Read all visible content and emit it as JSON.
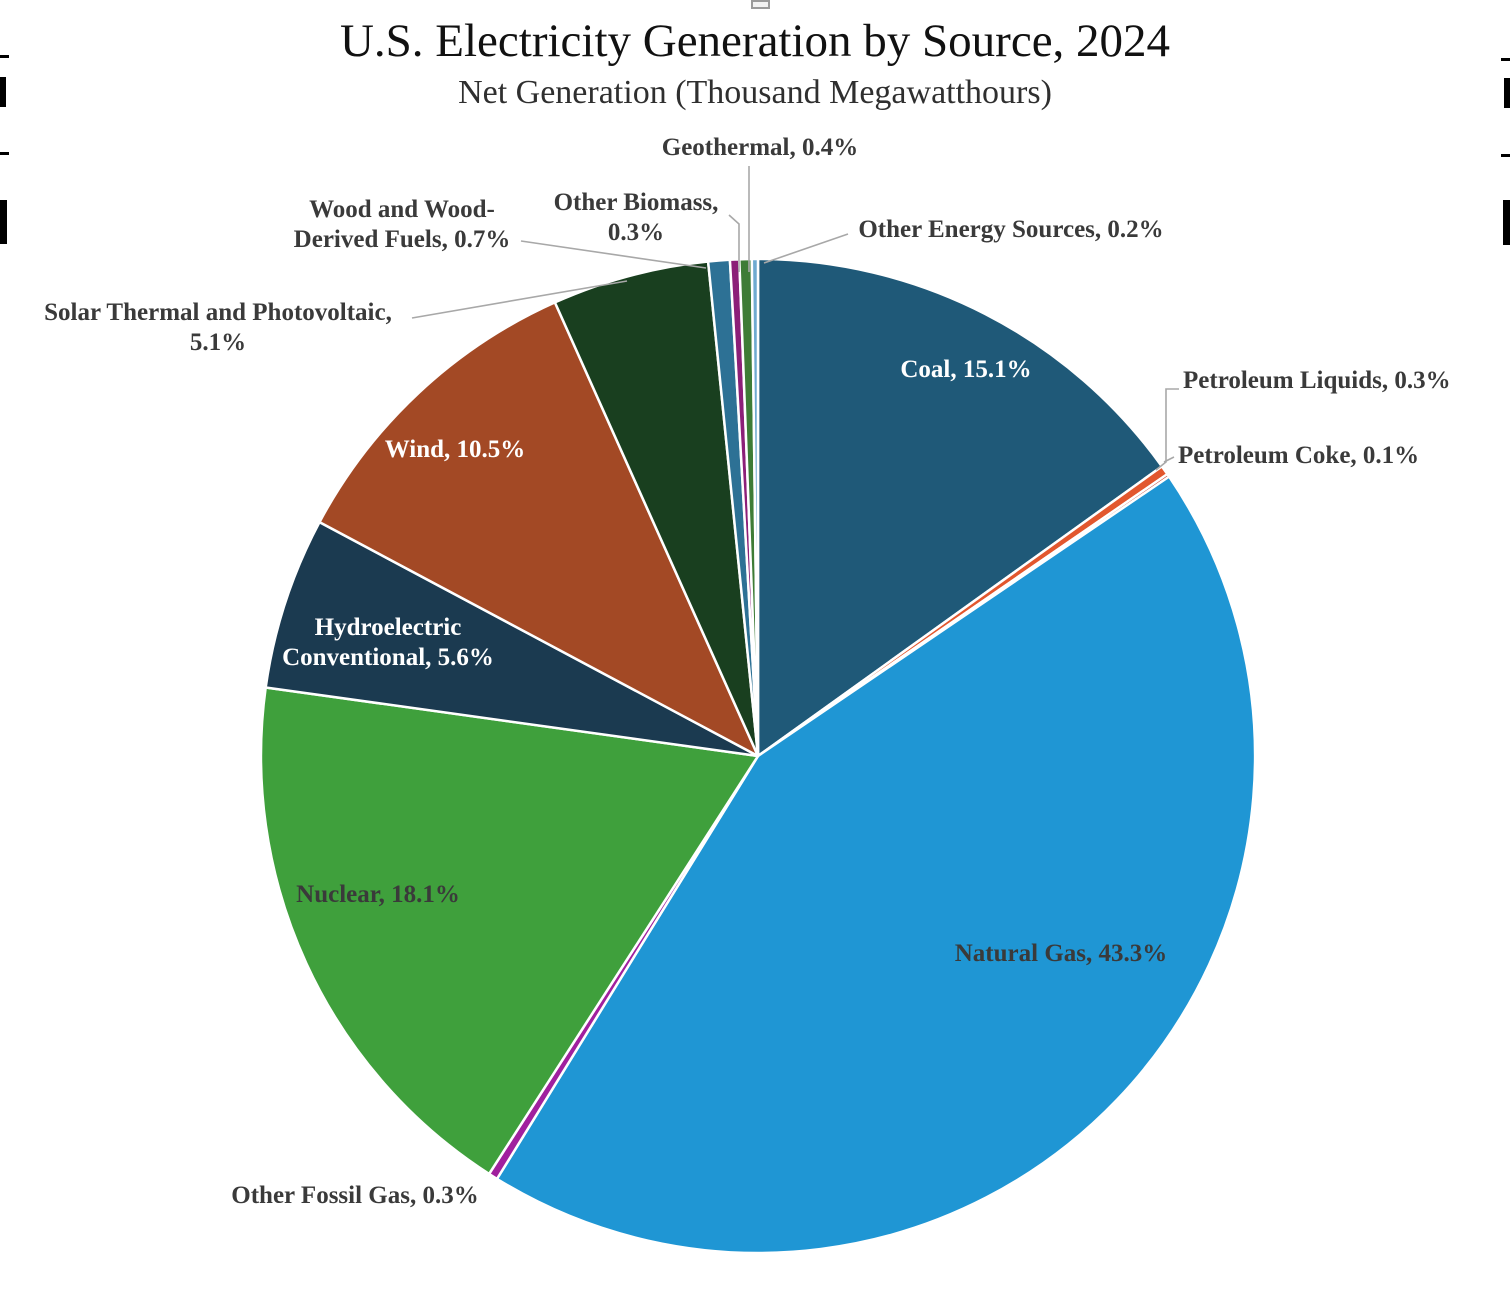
{
  "chart_data": {
    "type": "pie",
    "title": "U.S. Electricity Generation by Source, 2024",
    "subtitle": "Net Generation (Thousand Megawatthours)",
    "start_angle_deg_from_12_oclock": 0,
    "direction": "clockwise",
    "legend_position": "none (labels on or beside slices)",
    "slice_border_color": "#ffffff",
    "leader_line_color": "#a8a8a8",
    "slices": [
      {
        "key": "coal",
        "name": "Coal",
        "pct": 15.1,
        "color": "#1F5978",
        "label_lines": [
          "Coal, 15.1%"
        ],
        "label_placement": "inside"
      },
      {
        "key": "petroleum_liquids",
        "name": "Petroleum Liquids",
        "pct": 0.3,
        "color": "#E2572E",
        "label_lines": [
          "Petroleum Liquids, 0.3%"
        ],
        "label_placement": "outside"
      },
      {
        "key": "petroleum_coke",
        "name": "Petroleum Coke",
        "pct": 0.1,
        "color": "#C0392B",
        "label_lines": [
          "Petroleum Coke, 0.1%"
        ],
        "label_placement": "outside"
      },
      {
        "key": "natural_gas",
        "name": "Natural Gas",
        "pct": 43.3,
        "color": "#1F96D4",
        "label_lines": [
          "Natural Gas, 43.3%"
        ],
        "label_placement": "inside"
      },
      {
        "key": "other_fossil_gas",
        "name": "Other Fossil Gas",
        "pct": 0.3,
        "color": "#A0209E",
        "label_lines": [
          "Other Fossil Gas, 0.3%"
        ],
        "label_placement": "outside"
      },
      {
        "key": "nuclear",
        "name": "Nuclear",
        "pct": 18.1,
        "color": "#3FA03C",
        "label_lines": [
          "Nuclear, 18.1%"
        ],
        "label_placement": "inside"
      },
      {
        "key": "hydroelectric",
        "name": "Hydroelectric Conventional",
        "pct": 5.6,
        "color": "#1B3A50",
        "label_lines": [
          "Hydroelectric",
          "Conventional, 5.6%"
        ],
        "label_placement": "inside"
      },
      {
        "key": "wind",
        "name": "Wind",
        "pct": 10.5,
        "color": "#A34925",
        "label_lines": [
          "Wind, 10.5%"
        ],
        "label_placement": "inside"
      },
      {
        "key": "solar",
        "name": "Solar Thermal and Photovoltaic",
        "pct": 5.1,
        "color": "#193F1F",
        "label_lines": [
          "Solar Thermal and Photovoltaic,",
          "5.1%"
        ],
        "label_placement": "outside"
      },
      {
        "key": "wood",
        "name": "Wood and Wood-Derived Fuels",
        "pct": 0.7,
        "color": "#2D7195",
        "label_lines": [
          "Wood and Wood-",
          "Derived Fuels, 0.7%"
        ],
        "label_placement": "outside"
      },
      {
        "key": "other_biomass",
        "name": "Other Biomass",
        "pct": 0.3,
        "color": "#8C1F78",
        "label_lines": [
          "Other Biomass,",
          "0.3%"
        ],
        "label_placement": "outside"
      },
      {
        "key": "geothermal",
        "name": "Geothermal",
        "pct": 0.4,
        "color": "#3E7C36",
        "label_lines": [
          "Geothermal, 0.4%"
        ],
        "label_placement": "outside"
      },
      {
        "key": "other_energy",
        "name": "Other Energy Sources",
        "pct": 0.2,
        "color": "#6FAAD0",
        "label_lines": [
          "Other Energy Sources, 0.2%"
        ],
        "label_placement": "outside"
      }
    ]
  }
}
